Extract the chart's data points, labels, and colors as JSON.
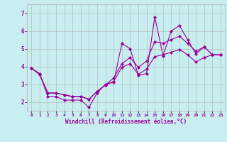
{
  "xlabel": "Windchill (Refroidissement éolien,°C)",
  "bg_color": "#c8eef0",
  "line_color": "#990099",
  "grid_color": "#b0b0b0",
  "xlim": [
    -0.5,
    23.5
  ],
  "ylim": [
    1.5,
    7.5
  ],
  "xticks": [
    0,
    1,
    2,
    3,
    4,
    5,
    6,
    7,
    8,
    9,
    10,
    11,
    12,
    13,
    14,
    15,
    16,
    17,
    18,
    19,
    20,
    21,
    22,
    23
  ],
  "yticks": [
    2,
    3,
    4,
    5,
    6,
    7
  ],
  "line1_x": [
    0,
    1,
    2,
    3,
    4,
    5,
    6,
    7,
    8,
    9,
    10,
    11,
    12,
    13,
    14,
    15,
    16,
    17,
    18,
    19,
    20,
    21,
    22,
    23
  ],
  "line1_y": [
    3.9,
    3.6,
    2.3,
    2.3,
    2.1,
    2.1,
    2.1,
    1.7,
    2.5,
    3.0,
    3.1,
    5.3,
    5.0,
    3.5,
    3.6,
    6.8,
    4.6,
    6.0,
    6.3,
    5.5,
    4.7,
    5.1,
    4.65,
    4.65
  ],
  "line2_x": [
    0,
    1,
    2,
    3,
    4,
    5,
    6,
    7,
    8,
    9,
    10,
    11,
    12,
    13,
    14,
    15,
    16,
    17,
    18,
    19,
    20,
    21,
    22,
    23
  ],
  "line2_y": [
    3.9,
    3.55,
    2.5,
    2.5,
    2.4,
    2.3,
    2.3,
    2.15,
    2.6,
    2.95,
    3.15,
    3.95,
    4.15,
    3.55,
    3.85,
    4.55,
    4.65,
    4.8,
    4.95,
    4.65,
    4.25,
    4.5,
    4.65,
    4.65
  ],
  "line3_x": [
    0,
    1,
    2,
    3,
    4,
    5,
    6,
    7,
    8,
    9,
    10,
    11,
    12,
    13,
    14,
    15,
    16,
    17,
    18,
    19,
    20,
    21,
    22,
    23
  ],
  "line3_y": [
    3.9,
    3.55,
    2.5,
    2.5,
    2.4,
    2.3,
    2.3,
    2.15,
    2.6,
    2.95,
    3.35,
    4.15,
    4.5,
    3.95,
    4.3,
    5.4,
    5.3,
    5.5,
    5.7,
    5.3,
    4.85,
    5.1,
    4.65,
    4.65
  ]
}
